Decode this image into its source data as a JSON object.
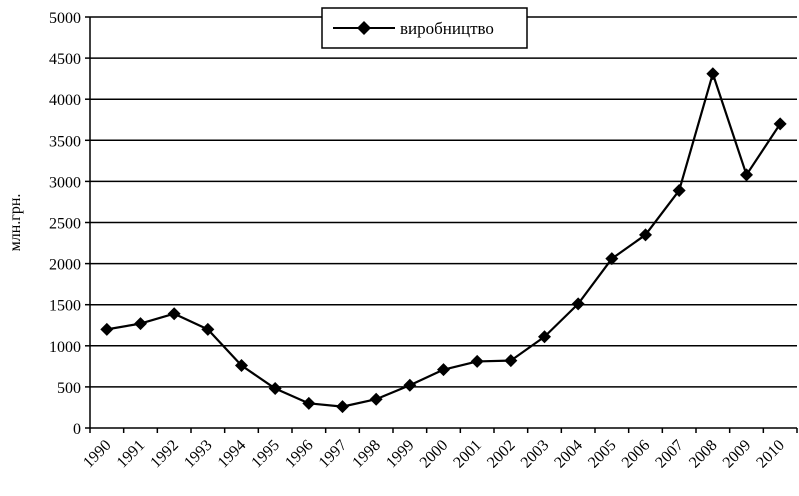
{
  "chart_data": {
    "type": "line",
    "title": "",
    "xlabel": "",
    "ylabel": "млн.грн.",
    "ylim": [
      0,
      5000
    ],
    "yticks": [
      0,
      500,
      1000,
      1500,
      2000,
      2500,
      3000,
      3500,
      4000,
      4500,
      5000
    ],
    "grid": true,
    "legend_position": "top-center",
    "categories": [
      "1990",
      "1991",
      "1992",
      "1993",
      "1994",
      "1995",
      "1996",
      "1997",
      "1998",
      "1999",
      "2000",
      "2001",
      "2002",
      "2003",
      "2004",
      "2005",
      "2006",
      "2007",
      "2008",
      "2009",
      "2010"
    ],
    "series": [
      {
        "name": "виробництво",
        "marker": "diamond",
        "color": "#000000",
        "values": [
          1200,
          1270,
          1390,
          1200,
          760,
          480,
          300,
          260,
          350,
          520,
          710,
          810,
          820,
          1110,
          1510,
          2060,
          2350,
          2890,
          4310,
          3080,
          3700
        ]
      }
    ]
  }
}
